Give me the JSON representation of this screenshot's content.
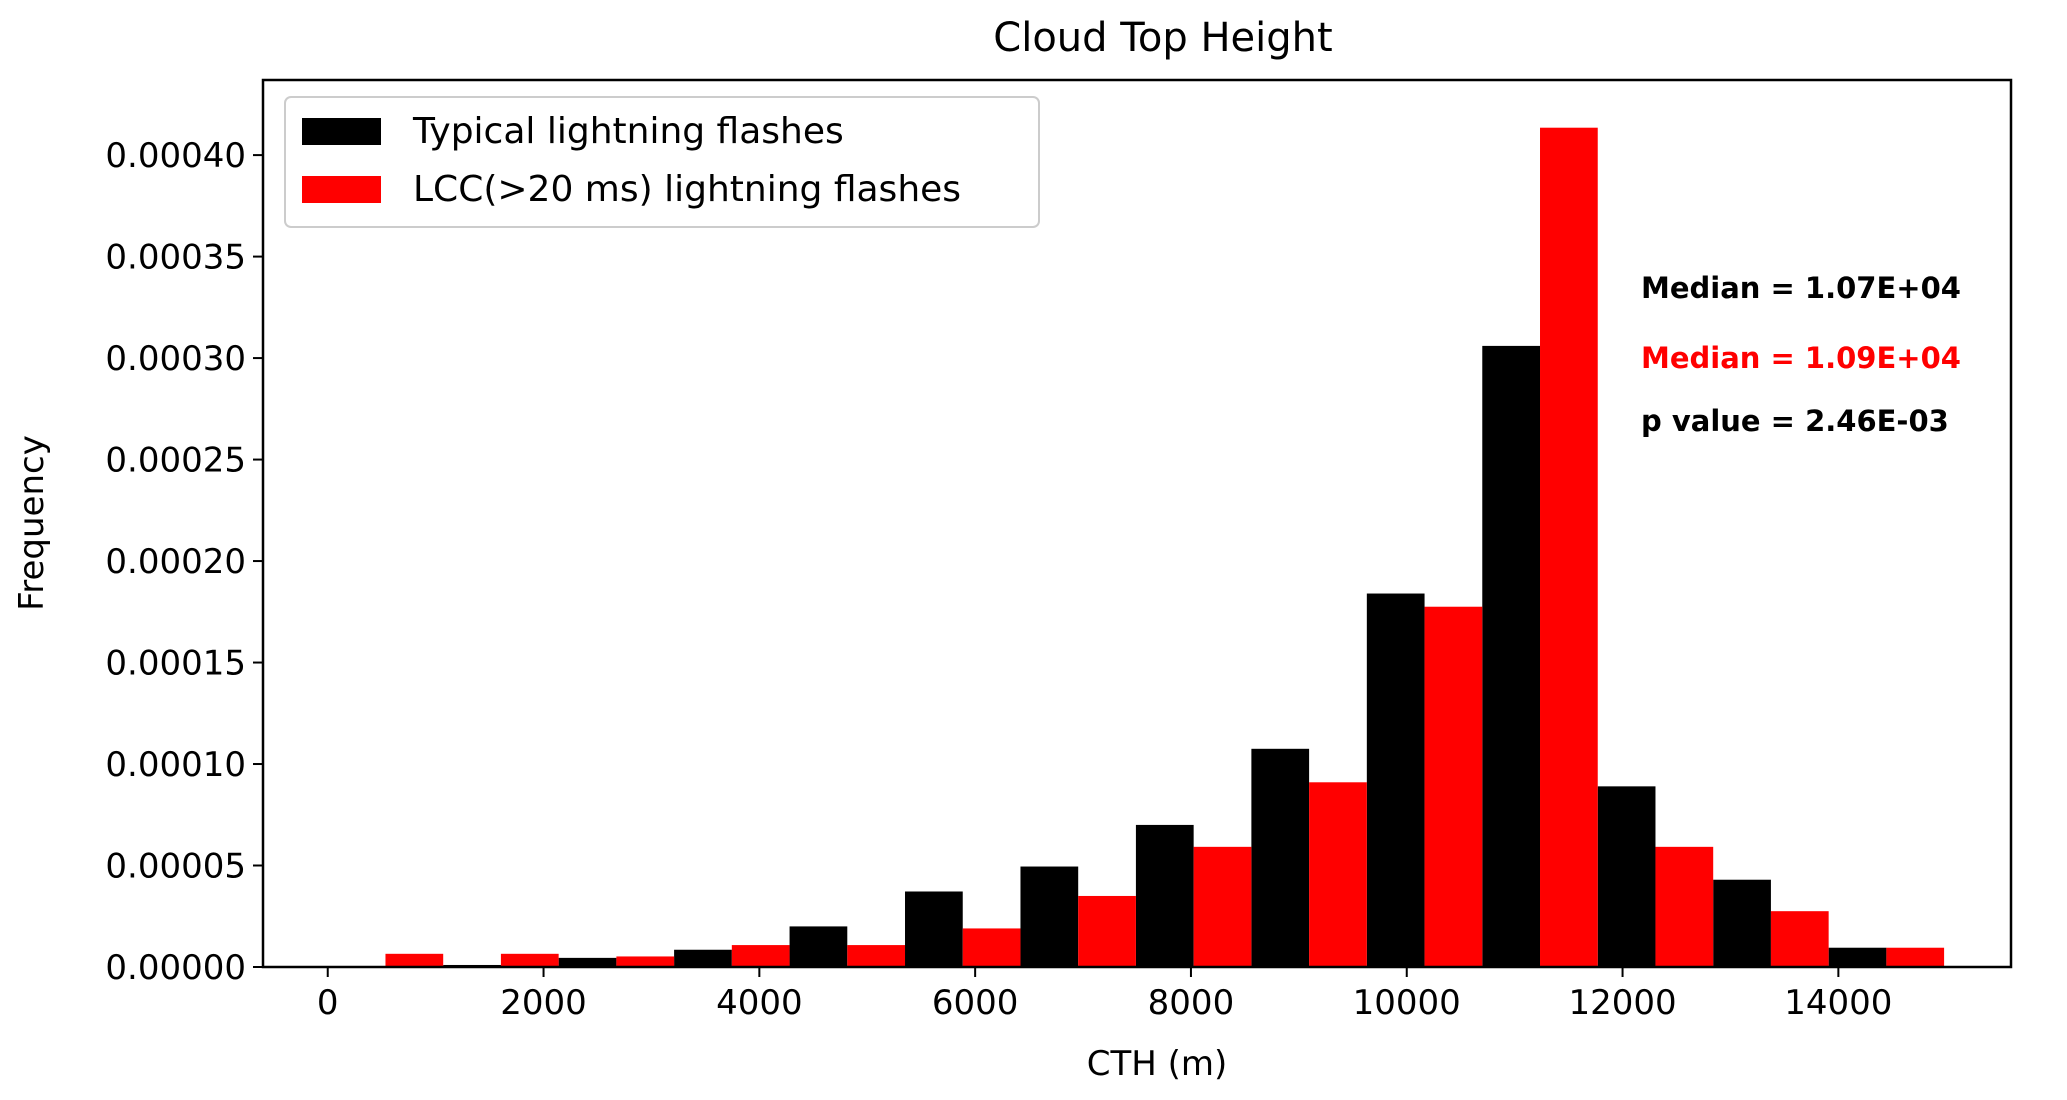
{
  "chart_data": {
    "type": "bar",
    "title": "Cloud Top Height",
    "xlabel": "CTH (m)",
    "ylabel": "Frequency",
    "xlim": [
      -600,
      15600
    ],
    "ylim": [
      0,
      0.000437
    ],
    "xticks": [
      0,
      2000,
      4000,
      6000,
      8000,
      10000,
      12000,
      14000
    ],
    "xtick_labels": [
      "0",
      "2000",
      "4000",
      "6000",
      "8000",
      "10000",
      "12000",
      "14000"
    ],
    "yticks": [
      0,
      5e-05,
      0.0001,
      0.00015,
      0.0002,
      0.00025,
      0.0003,
      0.00035,
      0.0004
    ],
    "ytick_labels": [
      "0.00000",
      "0.00005",
      "0.00010",
      "0.00015",
      "0.00020",
      "0.00025",
      "0.00030",
      "0.00035",
      "0.00040"
    ],
    "bins": [
      0,
      1070,
      2140,
      3210,
      4280,
      5350,
      6420,
      7490,
      8560,
      9630,
      10700,
      11770,
      12840,
      13910
    ],
    "bin_width": 1070,
    "series": [
      {
        "name": "Typical lightning flashes",
        "color": "#000000",
        "values": [
          0.0,
          1e-06,
          4.5e-06,
          8.5e-06,
          2e-05,
          3.72e-05,
          4.95e-05,
          7e-05,
          0.0001075,
          0.000184,
          0.000306,
          8.9e-05,
          4.3e-05,
          9.5e-06
        ]
      },
      {
        "name": "LCC(>20 ms) lightning flashes",
        "color": "#ff0000",
        "values": [
          6.5e-06,
          6.5e-06,
          5.2e-06,
          1.08e-05,
          1.08e-05,
          1.9e-05,
          3.5e-05,
          5.92e-05,
          9.1e-05,
          0.0001775,
          0.0004135,
          5.92e-05,
          2.75e-05,
          9.5e-06
        ]
      }
    ],
    "legend": {
      "placement": "top-left",
      "entries": [
        "Typical lightning flashes",
        "LCC(>20 ms) lightning flashes"
      ]
    },
    "annotations": [
      {
        "text": "Median = 1.07E+04",
        "color": "#000000"
      },
      {
        "text": "Median = 1.09E+04",
        "color": "#ff0000"
      },
      {
        "text": "p value = 2.46E-03",
        "color": "#000000"
      }
    ],
    "grid": false
  }
}
